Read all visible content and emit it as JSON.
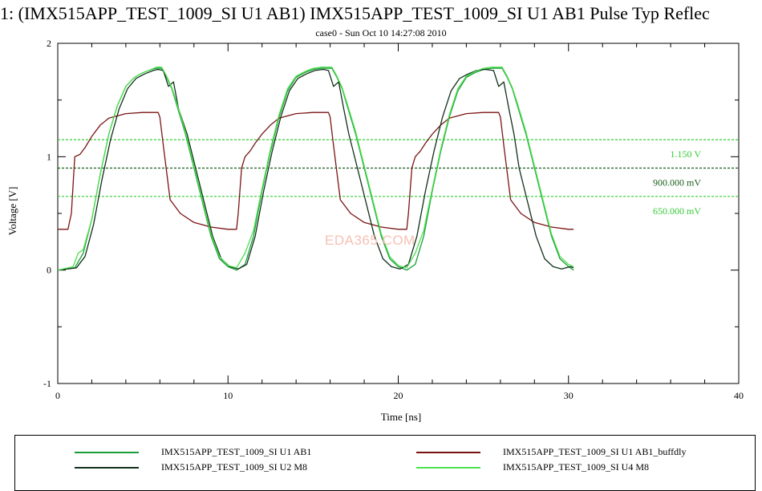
{
  "window_title": "1: (IMX515APP_TEST_1009_SI U1 AB1) IMX515APP_TEST_1009_SI U1 AB1 Pulse Typ Reflec",
  "watermark": "EDA365.COM",
  "chart_data": {
    "type": "line",
    "subtitle": "case0 - Sun Oct 10 14:27:08 2010",
    "xlabel": "Time [ns]",
    "ylabel": "Voltage [V]",
    "xlim": [
      0,
      40
    ],
    "ylim": [
      -1,
      2
    ],
    "xticks": [
      "0",
      "10",
      "20",
      "30",
      "40"
    ],
    "yticks": [
      "-1",
      "0",
      "1",
      "2"
    ],
    "thresholds": [
      {
        "value": 1.15,
        "label": "1.150 V",
        "color": "#33cc33"
      },
      {
        "value": 0.9,
        "label": "900.000 mV",
        "color": "#1a5e1a"
      },
      {
        "value": 0.65,
        "label": "650.000 mV",
        "color": "#33cc33"
      }
    ],
    "series": [
      {
        "name": "IMX515APP_TEST_1009_SI U1 AB1",
        "color": "#1a9e3a",
        "x": [
          0,
          1.0,
          1.5,
          2.0,
          2.5,
          3.0,
          3.5,
          4.0,
          4.5,
          5.0,
          5.5,
          5.8,
          6.1,
          6.4,
          6.7,
          7.0,
          7.5,
          8.0,
          8.5,
          9.0,
          9.5,
          10.0,
          10.5,
          11.0,
          11.5,
          12.0,
          12.5,
          13.0,
          13.5,
          14.0,
          14.5,
          15.0,
          15.5,
          15.8,
          16.1,
          16.4,
          16.7,
          17.0,
          17.5,
          18.0,
          18.5,
          19.0,
          19.5,
          20.0,
          20.5,
          21.0,
          21.5,
          22.0,
          22.5,
          23.0,
          23.5,
          24.0,
          24.5,
          25.0,
          25.5,
          25.8,
          26.1,
          26.4,
          26.7,
          27.0,
          27.5,
          28.0,
          28.5,
          29.0,
          29.5,
          30.0,
          30.3
        ],
        "y": [
          0.0,
          0.02,
          0.15,
          0.45,
          0.85,
          1.2,
          1.45,
          1.62,
          1.7,
          1.74,
          1.77,
          1.78,
          1.78,
          1.7,
          1.6,
          1.45,
          1.2,
          0.9,
          0.6,
          0.3,
          0.1,
          0.03,
          0.0,
          0.05,
          0.3,
          0.7,
          1.05,
          1.35,
          1.58,
          1.7,
          1.74,
          1.77,
          1.78,
          1.78,
          1.78,
          1.7,
          1.6,
          1.45,
          1.2,
          0.9,
          0.6,
          0.3,
          0.1,
          0.03,
          0.0,
          0.05,
          0.3,
          0.7,
          1.05,
          1.35,
          1.58,
          1.7,
          1.74,
          1.77,
          1.78,
          1.78,
          1.78,
          1.7,
          1.6,
          1.45,
          1.2,
          0.9,
          0.6,
          0.3,
          0.1,
          0.03,
          0.0
        ]
      },
      {
        "name": "IMX515APP_TEST_1009_SI U1 AB1_buffdly",
        "color": "#7a1414",
        "x": [
          0,
          0.6,
          0.8,
          1.0,
          1.3,
          1.6,
          2.0,
          2.5,
          3.0,
          4.0,
          5.0,
          5.9,
          6.0,
          6.2,
          6.6,
          7.2,
          8.0,
          9.0,
          10.0,
          10.5,
          10.6,
          10.8,
          11.0,
          11.3,
          11.6,
          12.0,
          12.5,
          13.0,
          14.0,
          15.0,
          15.9,
          16.0,
          16.2,
          16.6,
          17.2,
          18.0,
          19.0,
          20.0,
          20.5,
          20.6,
          20.8,
          21.0,
          21.3,
          21.6,
          22.0,
          22.5,
          23.0,
          24.0,
          25.0,
          25.9,
          26.0,
          26.2,
          26.6,
          27.2,
          28.0,
          29.0,
          30.0,
          30.3
        ],
        "y": [
          0.36,
          0.36,
          0.5,
          1.0,
          1.02,
          1.08,
          1.18,
          1.28,
          1.34,
          1.38,
          1.39,
          1.39,
          1.35,
          1.1,
          0.62,
          0.5,
          0.42,
          0.38,
          0.36,
          0.36,
          0.5,
          0.9,
          1.0,
          1.05,
          1.12,
          1.2,
          1.28,
          1.34,
          1.38,
          1.39,
          1.39,
          1.35,
          1.1,
          0.62,
          0.5,
          0.42,
          0.38,
          0.36,
          0.36,
          0.5,
          0.9,
          1.0,
          1.05,
          1.12,
          1.2,
          1.28,
          1.34,
          1.38,
          1.39,
          1.39,
          1.35,
          1.1,
          0.62,
          0.5,
          0.42,
          0.38,
          0.36,
          0.36
        ]
      },
      {
        "name": "IMX515APP_TEST_1009_SI U2 M8",
        "color": "#10301a",
        "x": [
          0,
          1.1,
          1.6,
          2.1,
          2.6,
          3.1,
          3.6,
          4.1,
          4.6,
          5.1,
          5.6,
          5.9,
          6.2,
          6.5,
          6.8,
          7.1,
          7.6,
          8.1,
          8.6,
          9.1,
          9.6,
          10.1,
          10.6,
          11.1,
          11.6,
          12.1,
          12.6,
          13.1,
          13.6,
          14.1,
          14.6,
          15.1,
          15.6,
          15.9,
          16.2,
          16.5,
          16.8,
          17.1,
          17.6,
          18.1,
          18.6,
          19.1,
          19.6,
          20.1,
          20.6,
          21.1,
          21.6,
          22.1,
          22.6,
          23.1,
          23.6,
          24.1,
          24.6,
          25.1,
          25.6,
          25.9,
          26.2,
          26.5,
          26.8,
          27.1,
          27.6,
          28.1,
          28.6,
          29.1,
          29.6,
          30.1,
          30.3
        ],
        "y": [
          0.0,
          0.02,
          0.12,
          0.4,
          0.8,
          1.15,
          1.42,
          1.6,
          1.69,
          1.73,
          1.76,
          1.77,
          1.76,
          1.62,
          1.66,
          1.42,
          1.2,
          0.9,
          0.6,
          0.3,
          0.1,
          0.03,
          0.01,
          0.05,
          0.3,
          0.7,
          1.05,
          1.35,
          1.58,
          1.69,
          1.73,
          1.76,
          1.77,
          1.76,
          1.62,
          1.66,
          1.42,
          1.2,
          0.9,
          0.6,
          0.3,
          0.1,
          0.03,
          0.01,
          0.05,
          0.3,
          0.7,
          1.05,
          1.35,
          1.58,
          1.69,
          1.73,
          1.76,
          1.77,
          1.76,
          1.62,
          1.66,
          1.42,
          1.2,
          0.9,
          0.6,
          0.3,
          0.1,
          0.03,
          0.01,
          0.03,
          0.02
        ]
      },
      {
        "name": "IMX515APP_TEST_1009_SI U4 M8",
        "color": "#4de04d",
        "x": [
          0,
          0.9,
          1.2,
          1.5,
          2.0,
          2.5,
          3.0,
          3.5,
          4.0,
          4.5,
          5.0,
          5.5,
          5.8,
          6.1,
          6.4,
          6.7,
          7.0,
          7.5,
          8.0,
          8.5,
          9.0,
          9.5,
          10.0,
          10.5,
          11.0,
          11.5,
          12.0,
          12.5,
          13.0,
          13.5,
          14.0,
          14.5,
          15.0,
          15.5,
          15.8,
          16.1,
          16.4,
          16.7,
          17.0,
          17.5,
          18.0,
          18.5,
          19.0,
          19.5,
          20.0,
          20.5,
          21.0,
          21.5,
          22.0,
          22.5,
          23.0,
          23.5,
          24.0,
          24.5,
          25.0,
          25.5,
          25.8,
          26.1,
          26.4,
          26.7,
          27.0,
          27.5,
          28.0,
          28.5,
          29.0,
          29.5,
          30.0,
          30.3
        ],
        "y": [
          0.0,
          0.03,
          0.15,
          0.18,
          0.45,
          0.85,
          1.2,
          1.45,
          1.62,
          1.7,
          1.74,
          1.77,
          1.79,
          1.79,
          1.71,
          1.61,
          1.47,
          1.22,
          0.92,
          0.62,
          0.32,
          0.12,
          0.04,
          0.02,
          0.15,
          0.35,
          0.72,
          1.07,
          1.37,
          1.6,
          1.71,
          1.75,
          1.78,
          1.79,
          1.79,
          1.79,
          1.71,
          1.61,
          1.47,
          1.22,
          0.92,
          0.62,
          0.32,
          0.12,
          0.04,
          0.02,
          0.15,
          0.35,
          0.72,
          1.07,
          1.37,
          1.6,
          1.71,
          1.75,
          1.78,
          1.79,
          1.79,
          1.79,
          1.71,
          1.61,
          1.47,
          1.22,
          0.92,
          0.62,
          0.32,
          0.12,
          0.05,
          0.03
        ]
      }
    ],
    "legend": [
      {
        "label": "IMX515APP_TEST_1009_SI U1 AB1",
        "color": "#1a9e3a"
      },
      {
        "label": "IMX515APP_TEST_1009_SI U1 AB1_buffdly",
        "color": "#7a1414"
      },
      {
        "label": "IMX515APP_TEST_1009_SI U2 M8",
        "color": "#10301a"
      },
      {
        "label": "IMX515APP_TEST_1009_SI U4 M8",
        "color": "#4de04d"
      }
    ]
  }
}
